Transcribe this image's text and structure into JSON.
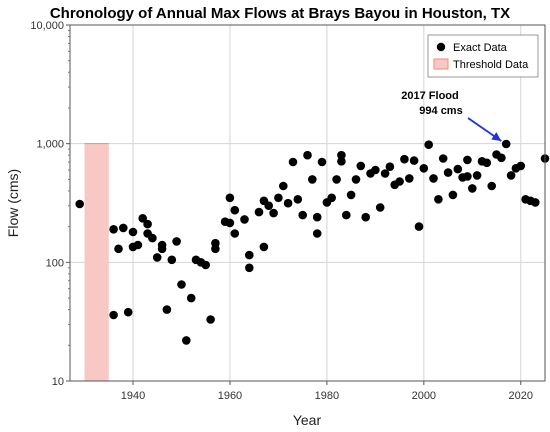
{
  "chart_data": {
    "type": "scatter",
    "title": "Chronology of Annual Max Flows at Brays Bayou in Houston, TX",
    "xlabel": "Year",
    "ylabel": "Flow (cms)",
    "xlim": [
      1927,
      2025
    ],
    "ylim": [
      10,
      10000
    ],
    "y_scale": "log",
    "grid": true,
    "legend_position": "top-right",
    "x_ticks": [
      1940,
      1960,
      1980,
      2000,
      2020
    ],
    "x_tick_labels": [
      "1940",
      "1960",
      "1980",
      "2000",
      "2020"
    ],
    "y_ticks": [
      10,
      100,
      1000,
      10000
    ],
    "y_tick_labels": [
      "10",
      "100",
      "1,000",
      "10,000"
    ],
    "threshold": {
      "name": "Threshold Data",
      "x_start": 1930,
      "x_end": 1935,
      "y_top": 1000,
      "color": "#f8c9c4",
      "edge_color": "#f08a80"
    },
    "series": [
      {
        "name": "Exact Data",
        "color": "#000000",
        "x": [
          1929,
          1936,
          1936,
          1937,
          1938,
          1939,
          1940,
          1940,
          1941,
          1942,
          1943,
          1943,
          1944,
          1945,
          1946,
          1946,
          1947,
          1948,
          1949,
          1950,
          1951,
          1952,
          1953,
          1954,
          1955,
          1956,
          1957,
          1957,
          1959,
          1960,
          1960,
          1961,
          1961,
          1963,
          1964,
          1964,
          1966,
          1967,
          1967,
          1968,
          1969,
          1970,
          1971,
          1972,
          1973,
          1974,
          1975,
          1976,
          1977,
          1978,
          1978,
          1979,
          1980,
          1981,
          1982,
          1983,
          1983,
          1984,
          1985,
          1986,
          1987,
          1988,
          1989,
          1990,
          1991,
          1992,
          1993,
          1994,
          1995,
          1996,
          1997,
          1998,
          1999,
          2000,
          2001,
          2002,
          2003,
          2004,
          2005,
          2006,
          2007,
          2008,
          2009,
          2009,
          2010,
          2011,
          2012,
          2013,
          2014,
          2015,
          2016,
          2017,
          2018,
          2019,
          2020,
          2021,
          2022,
          2023,
          2025
        ],
        "y": [
          310,
          36,
          190,
          130,
          195,
          38,
          135,
          180,
          140,
          235,
          175,
          210,
          160,
          110,
          130,
          140,
          40,
          105,
          150,
          65,
          22,
          50,
          105,
          100,
          95,
          33,
          130,
          145,
          220,
          350,
          215,
          175,
          275,
          230,
          115,
          90,
          265,
          330,
          135,
          300,
          260,
          350,
          440,
          315,
          700,
          340,
          250,
          800,
          500,
          240,
          175,
          700,
          320,
          350,
          500,
          800,
          710,
          250,
          370,
          500,
          650,
          240,
          560,
          600,
          290,
          560,
          640,
          450,
          480,
          740,
          510,
          720,
          200,
          620,
          980,
          510,
          340,
          750,
          570,
          370,
          610,
          520,
          730,
          530,
          420,
          540,
          710,
          690,
          440,
          810,
          760,
          994,
          540,
          620,
          650,
          340,
          330,
          320,
          750
        ]
      }
    ],
    "annotations": [
      {
        "text_line1": "2017 Flood",
        "text_line2": "994 cms",
        "x": 2017,
        "y": 994,
        "arrow_color": "#1f32e0"
      }
    ]
  }
}
